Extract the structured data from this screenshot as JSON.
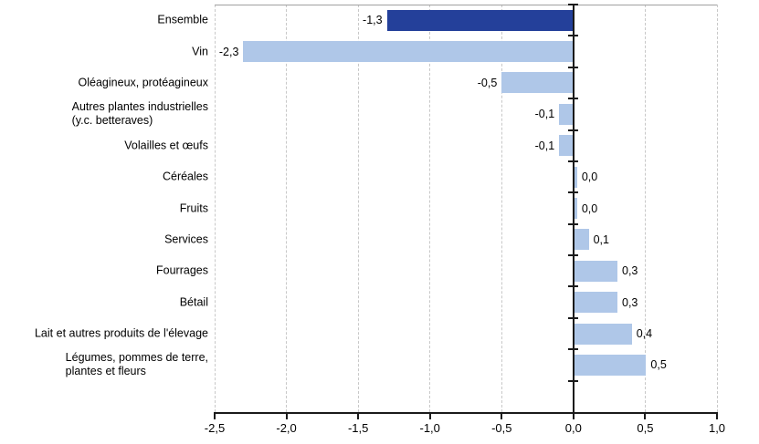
{
  "chart_data": {
    "type": "bar",
    "orientation": "horizontal",
    "title": "",
    "xlabel": "",
    "ylabel": "",
    "categories": [
      "Ensemble",
      "Vin",
      "Oléagineux, protéagineux",
      "Autres plantes industrielles\n(y.c. betteraves)",
      "Volailles et œufs",
      "Céréales",
      "Fruits",
      "Services",
      "Fourrages",
      "Bétail",
      "Lait et autres produits de l'élevage",
      "Légumes, pommes de terre,\nplantes et fleurs"
    ],
    "values": [
      -1.3,
      -2.3,
      -0.5,
      -0.1,
      -0.1,
      0.0,
      0.0,
      0.1,
      0.3,
      0.3,
      0.4,
      0.5
    ],
    "value_labels": [
      "-1,3",
      "-2,3",
      "-0,5",
      "-0,1",
      "-0,1",
      "0,0",
      "0,0",
      "0,1",
      "0,3",
      "0,3",
      "0,4",
      "0,5"
    ],
    "highlight_index": 0,
    "xlim": [
      -2.5,
      1.0
    ],
    "x_ticks": [
      -2.5,
      -2.0,
      -1.5,
      -1.0,
      -0.5,
      0.0,
      0.5,
      1.0
    ],
    "x_tick_labels": [
      "-2,5",
      "-2,0",
      "-1,5",
      "-1,0",
      "-0,5",
      "0,0",
      "0,5",
      "1,0"
    ],
    "grid": "vertical-dashed",
    "legend": "none",
    "colors": {
      "bar_default": "#afc7e8",
      "bar_highlight": "#24409a",
      "gridline": "#c8c8c8",
      "plot_border_top": "#a0a0a0",
      "axis": "#1a1a1a",
      "text": "#000000"
    }
  }
}
